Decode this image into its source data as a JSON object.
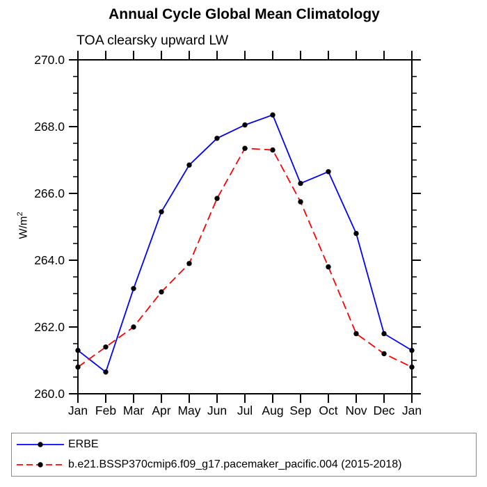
{
  "header": {
    "title": "Annual Cycle Global Mean Climatology",
    "subtitle": "TOA clearsky upward LW"
  },
  "axes": {
    "ylabel_base": "W/m",
    "ylabel_exp": "2"
  },
  "colors": {
    "erbe_line": "#0000ff",
    "model_line": "#ff0000",
    "marker": "#000000",
    "axis": "#000000",
    "legend_border": "#8a8a8a"
  },
  "legend": {
    "entries": [
      {
        "label": "ERBE",
        "color": "#0000ff",
        "dash": "solid"
      },
      {
        "label": "b.e21.BSSP370cmip6.f09_g17.pacemaker_pacific.004 (2015-2018)",
        "color": "#ff0000",
        "dash": "dashed"
      }
    ]
  },
  "chart_data": {
    "type": "line",
    "title": "Annual Cycle Global Mean Climatology",
    "subtitle": "TOA clearsky upward LW",
    "ylabel": "W/m^2",
    "categories": [
      "Jan",
      "Feb",
      "Mar",
      "Apr",
      "May",
      "Jun",
      "Jul",
      "Aug",
      "Sep",
      "Oct",
      "Nov",
      "Dec",
      "Jan"
    ],
    "series": [
      {
        "name": "ERBE",
        "color": "#0000ff",
        "line_style": "solid",
        "marker": "filled-circle",
        "marker_color": "#000000",
        "values": [
          261.3,
          260.65,
          263.15,
          265.45,
          266.85,
          267.65,
          268.05,
          268.35,
          266.3,
          266.65,
          264.8,
          261.8,
          261.3
        ]
      },
      {
        "name": "b.e21.BSSP370cmip6.f09_g17.pacemaker_pacific.004 (2015-2018)",
        "color": "#ff0000",
        "line_style": "dashed",
        "marker": "filled-circle",
        "marker_color": "#000000",
        "values": [
          260.8,
          261.4,
          262.0,
          263.05,
          263.9,
          265.85,
          267.35,
          267.3,
          265.75,
          263.8,
          261.8,
          261.2,
          260.8
        ]
      }
    ],
    "ylim": [
      260.0,
      270.0
    ],
    "ytick_major": 2.0,
    "ytick_minor": 0.5,
    "ytick_labels": [
      "260.0",
      "262.0",
      "264.0",
      "266.0",
      "268.0",
      "270.0"
    ],
    "grid": false,
    "legend_position": "bottom"
  }
}
